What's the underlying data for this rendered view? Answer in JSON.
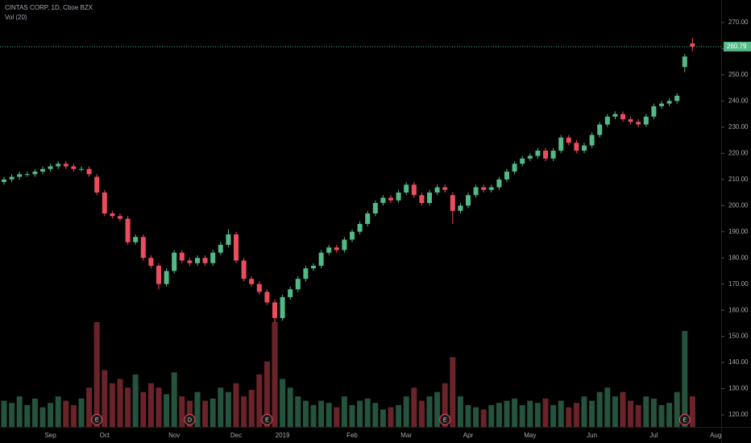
{
  "chart_data": {
    "type": "candlestick",
    "title": "CINTAS CORP, 1D, Cboe BZX",
    "categories": [
      null,
      null,
      null,
      null,
      null,
      null,
      "Sep",
      null,
      null,
      null,
      null,
      null,
      null,
      "Oct",
      null,
      null,
      null,
      null,
      null,
      null,
      null,
      null,
      "Nov",
      null,
      null,
      null,
      null,
      null,
      null,
      null,
      "Dec",
      null,
      null,
      null,
      null,
      null,
      "2019",
      null,
      null,
      null,
      null,
      null,
      null,
      null,
      null,
      "Feb",
      null,
      null,
      null,
      null,
      null,
      null,
      "Mar",
      null,
      null,
      null,
      null,
      null,
      null,
      null,
      "Apr",
      null,
      null,
      null,
      null,
      null,
      null,
      null,
      "May",
      null,
      null,
      null,
      null,
      null,
      null,
      null,
      "Jun",
      null,
      null,
      null,
      null,
      null,
      null,
      null,
      "Jul",
      null,
      null,
      null,
      null,
      null,
      null,
      null,
      "Aug"
    ],
    "open": [
      209,
      210,
      211,
      212,
      212,
      213,
      214,
      215,
      216,
      215,
      214,
      214,
      211,
      205,
      197,
      196,
      195,
      186,
      188,
      180,
      177,
      170,
      175,
      182,
      179,
      178,
      180,
      178,
      182,
      185,
      189,
      179,
      172,
      170,
      167,
      163,
      157,
      165,
      168,
      172,
      176,
      177,
      182,
      184,
      183,
      187,
      190,
      193,
      197,
      201,
      203,
      202,
      205,
      208,
      204,
      201,
      205,
      207,
      204,
      198,
      200,
      204,
      207,
      206,
      207,
      210,
      213,
      216,
      218,
      219,
      221,
      218,
      221,
      226,
      224,
      221,
      223,
      227,
      231,
      234,
      235,
      233,
      232,
      231,
      234,
      238,
      239,
      240,
      253,
      262,
      null,
      null,
      null
    ],
    "high": [
      211,
      212,
      213,
      213,
      214,
      215,
      216,
      217,
      217,
      216,
      215,
      215,
      212,
      206,
      198,
      197,
      196,
      189,
      189,
      181,
      178,
      176,
      183,
      183,
      180,
      181,
      181,
      183,
      186,
      191,
      190,
      180,
      173,
      171,
      168,
      164,
      166,
      169,
      173,
      177,
      178,
      183,
      185,
      185,
      188,
      191,
      194,
      198,
      202,
      204,
      204,
      206,
      209,
      209,
      205,
      206,
      208,
      208,
      205,
      201,
      205,
      208,
      208,
      208,
      211,
      214,
      217,
      219,
      220,
      222,
      222,
      222,
      227,
      227,
      225,
      224,
      228,
      232,
      235,
      236,
      236,
      234,
      233,
      235,
      239,
      240,
      241,
      243,
      258,
      264,
      null,
      null,
      null
    ],
    "low": [
      208,
      209,
      210,
      211,
      211,
      212,
      213,
      214,
      214,
      213,
      213,
      211,
      204,
      196,
      195,
      194,
      185,
      185,
      179,
      176,
      168,
      169,
      174,
      178,
      177,
      177,
      177,
      177,
      181,
      184,
      178,
      171,
      169,
      166,
      162,
      155,
      156,
      164,
      167,
      171,
      175,
      176,
      181,
      182,
      182,
      186,
      189,
      192,
      196,
      200,
      201,
      201,
      204,
      203,
      200,
      200,
      204,
      205,
      193,
      197,
      199,
      203,
      205,
      205,
      206,
      209,
      212,
      215,
      217,
      218,
      217,
      217,
      220,
      223,
      220,
      220,
      222,
      226,
      230,
      233,
      232,
      231,
      230,
      230,
      233,
      237,
      238,
      239,
      251,
      259,
      null,
      null,
      null
    ],
    "close": [
      210,
      211,
      212,
      212,
      213,
      214,
      215,
      216,
      215,
      214,
      214,
      212,
      205,
      197,
      196,
      195,
      186,
      188,
      180,
      177,
      170,
      175,
      182,
      179,
      178,
      180,
      178,
      182,
      185,
      189,
      179,
      172,
      170,
      167,
      163,
      157,
      165,
      168,
      172,
      176,
      177,
      182,
      184,
      183,
      187,
      190,
      193,
      197,
      201,
      203,
      202,
      205,
      208,
      204,
      201,
      205,
      207,
      206,
      198,
      200,
      204,
      207,
      206,
      207,
      210,
      213,
      216,
      218,
      219,
      221,
      218,
      221,
      226,
      224,
      221,
      223,
      227,
      231,
      234,
      235,
      233,
      232,
      231,
      234,
      238,
      239,
      240,
      242,
      257,
      260.79,
      null,
      null,
      null
    ],
    "up_color": "#53b987",
    "down_color": "#eb4d5c",
    "volume": {
      "name": "Vol (20)",
      "values": [
        600,
        550,
        700,
        500,
        650,
        450,
        550,
        700,
        600,
        500,
        650,
        900,
        2400,
        1300,
        1000,
        1100,
        900,
        1200,
        800,
        1000,
        900,
        750,
        1250,
        700,
        600,
        800,
        600,
        650,
        900,
        800,
        1000,
        700,
        850,
        1200,
        1500,
        2400,
        1100,
        900,
        700,
        600,
        500,
        600,
        550,
        450,
        700,
        500,
        600,
        650,
        550,
        400,
        450,
        500,
        700,
        900,
        600,
        700,
        800,
        1000,
        1600,
        700,
        500,
        450,
        400,
        500,
        550,
        600,
        650,
        500,
        600,
        550,
        650,
        500,
        600,
        450,
        550,
        700,
        600,
        800,
        900,
        700,
        800,
        600,
        500,
        700,
        650,
        500,
        550,
        800,
        2200,
        700,
        null,
        null,
        null
      ]
    },
    "events": [
      null,
      null,
      null,
      null,
      null,
      null,
      null,
      null,
      null,
      null,
      null,
      null,
      "E",
      null,
      null,
      null,
      null,
      null,
      null,
      null,
      null,
      null,
      null,
      null,
      "D",
      null,
      null,
      null,
      null,
      null,
      null,
      null,
      null,
      null,
      "E",
      null,
      null,
      null,
      null,
      null,
      null,
      null,
      null,
      null,
      null,
      null,
      null,
      null,
      null,
      null,
      null,
      null,
      null,
      null,
      null,
      null,
      null,
      "E",
      null,
      null,
      null,
      null,
      null,
      null,
      null,
      null,
      null,
      null,
      null,
      null,
      null,
      null,
      null,
      null,
      null,
      null,
      null,
      null,
      null,
      null,
      null,
      null,
      null,
      null,
      null,
      null,
      null,
      null,
      "E",
      null,
      null,
      null,
      null
    ],
    "last_price": 260.79,
    "ylim": [
      115.4,
      278.6
    ],
    "yticks": [
      {
        "value": 120,
        "label": "120.00"
      },
      {
        "value": 130,
        "label": "130.00"
      },
      {
        "value": 140,
        "label": "140.00"
      },
      {
        "value": 150,
        "label": "150.00"
      },
      {
        "value": 160,
        "label": "160.00"
      },
      {
        "value": 170,
        "label": "170.00"
      },
      {
        "value": 180,
        "label": "180.00"
      },
      {
        "value": 190,
        "label": "190.00"
      },
      {
        "value": 200,
        "label": "200.00"
      },
      {
        "value": 210,
        "label": "210.00"
      },
      {
        "value": 220,
        "label": "220.00"
      },
      {
        "value": 230,
        "label": "230.00"
      },
      {
        "value": 240,
        "label": "240.00"
      },
      {
        "value": 250,
        "label": "250.00"
      },
      {
        "value": 260,
        "label": "260.00"
      },
      {
        "value": 270,
        "label": "270.00"
      }
    ]
  }
}
